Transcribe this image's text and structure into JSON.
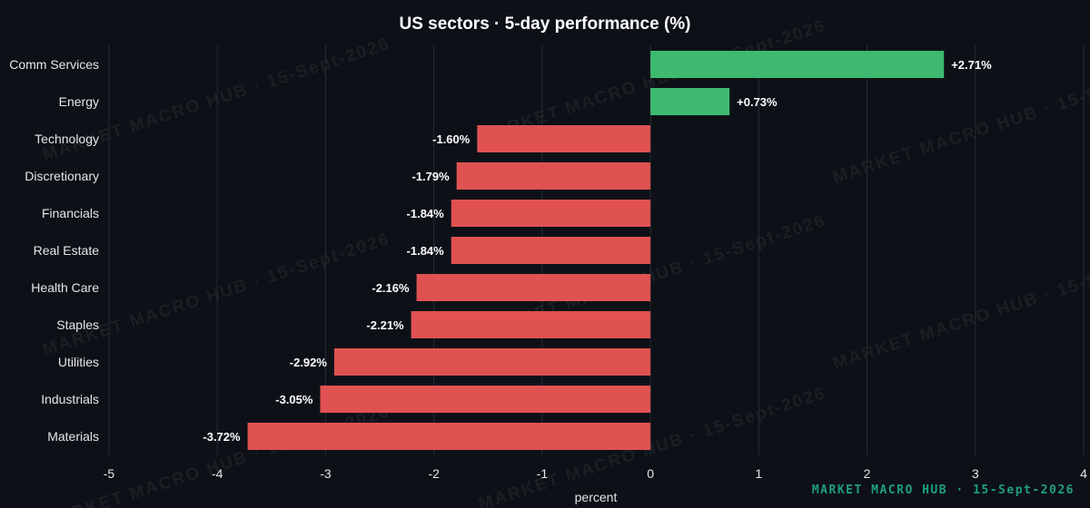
{
  "watermark_text": "MARKET MACRO HUB · 15-Sept-2026",
  "footer_text": "MARKET MACRO HUB · 15-Sept-2026",
  "colors": {
    "background": "#0d1117",
    "positive": "#3dba6f",
    "negative": "#e05252",
    "footer": "#1f9e7e",
    "gridline": "#262b33"
  },
  "chart_data": {
    "type": "bar",
    "orientation": "horizontal",
    "title": "US sectors · 5-day performance (%)",
    "xlabel": "percent",
    "ylabel": "",
    "xlim": [
      -5,
      4
    ],
    "xticks": [
      -5,
      -4,
      -3,
      -2,
      -1,
      0,
      1,
      2,
      3,
      4
    ],
    "grid": "vertical",
    "categories": [
      "Comm Services",
      "Energy",
      "Technology",
      "Discretionary",
      "Financials",
      "Real Estate",
      "Health Care",
      "Staples",
      "Utilities",
      "Industrials",
      "Materials"
    ],
    "values": [
      2.71,
      0.73,
      -1.6,
      -1.79,
      -1.84,
      -1.84,
      -2.16,
      -2.21,
      -2.92,
      -3.05,
      -3.72
    ],
    "value_labels": [
      "+2.71%",
      "+0.73%",
      "-1.60%",
      "-1.79%",
      "-1.84%",
      "-1.84%",
      "-2.16%",
      "-2.21%",
      "-2.92%",
      "-3.05%",
      "-3.72%"
    ]
  }
}
